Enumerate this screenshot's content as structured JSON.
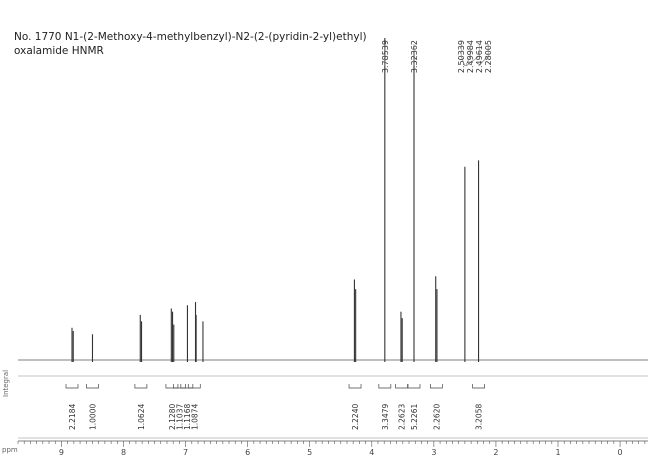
{
  "title_line1": "No. 1770 N1-(2-Methoxy-4-methylbenzyl)-N2-(2-(pyridin-2-yl)ethyl)",
  "title_line2": "oxalamide HNMR",
  "axis_unit": "ppm",
  "integral_label": "Integral",
  "chart_data": {
    "type": "line",
    "xlabel": "ppm",
    "ylabel": "",
    "xlim": [
      9.7,
      -0.45
    ],
    "x_reversed": true,
    "x_ticks": [
      9,
      8,
      7,
      6,
      5,
      4,
      3,
      2,
      1,
      0
    ],
    "peaks": [
      {
        "ppm": 8.83,
        "height": 0.1
      },
      {
        "ppm": 8.81,
        "height": 0.09
      },
      {
        "ppm": 8.5,
        "height": 0.08
      },
      {
        "ppm": 7.73,
        "height": 0.14
      },
      {
        "ppm": 7.71,
        "height": 0.12
      },
      {
        "ppm": 7.23,
        "height": 0.16
      },
      {
        "ppm": 7.21,
        "height": 0.15
      },
      {
        "ppm": 7.19,
        "height": 0.11
      },
      {
        "ppm": 6.97,
        "height": 0.17
      },
      {
        "ppm": 6.84,
        "height": 0.18
      },
      {
        "ppm": 6.83,
        "height": 0.14
      },
      {
        "ppm": 6.72,
        "height": 0.12
      },
      {
        "ppm": 4.28,
        "height": 0.25
      },
      {
        "ppm": 4.26,
        "height": 0.22
      },
      {
        "ppm": 3.79,
        "height": 1.0
      },
      {
        "ppm": 3.53,
        "height": 0.15
      },
      {
        "ppm": 3.51,
        "height": 0.13
      },
      {
        "ppm": 3.32,
        "height": 0.96
      },
      {
        "ppm": 2.97,
        "height": 0.26
      },
      {
        "ppm": 2.95,
        "height": 0.22
      },
      {
        "ppm": 2.5,
        "height": 0.6
      },
      {
        "ppm": 2.28,
        "height": 0.62
      }
    ],
    "peak_labels": [
      {
        "ppm": 3.79,
        "label": "3.78539"
      },
      {
        "ppm": 3.32,
        "label": "3.32362"
      },
      {
        "ppm": 2.5,
        "label": "2.50339"
      },
      {
        "ppm": 2.49,
        "label": "2.49984"
      },
      {
        "ppm": 2.48,
        "label": "2.49614"
      },
      {
        "ppm": 2.28,
        "label": "2.28005"
      }
    ],
    "integrals": [
      {
        "ppm": 8.83,
        "label": "2.2184"
      },
      {
        "ppm": 8.5,
        "label": "1.0000"
      },
      {
        "ppm": 7.72,
        "label": "1.0624"
      },
      {
        "ppm": 7.22,
        "label": "2.1280"
      },
      {
        "ppm": 7.1,
        "label": "1.1037"
      },
      {
        "ppm": 6.98,
        "label": "1.1168"
      },
      {
        "ppm": 6.86,
        "label": "1.0874"
      },
      {
        "ppm": 4.27,
        "label": "2.2240"
      },
      {
        "ppm": 3.79,
        "label": "3.3479"
      },
      {
        "ppm": 3.52,
        "label": "2.2623"
      },
      {
        "ppm": 3.32,
        "label": "5.2261"
      },
      {
        "ppm": 2.96,
        "label": "2.2620"
      },
      {
        "ppm": 2.28,
        "label": "3.2058"
      }
    ]
  }
}
